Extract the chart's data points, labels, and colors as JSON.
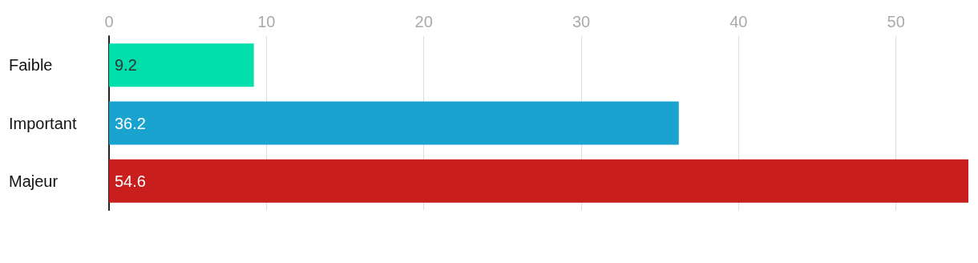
{
  "chart_data": {
    "type": "bar",
    "orientation": "horizontal",
    "categories": [
      "Faible",
      "Important",
      "Majeur"
    ],
    "values": [
      9.2,
      36.2,
      54.6
    ],
    "colors": [
      "#00dfab",
      "#1aa3cf",
      "#c81e1e"
    ],
    "xlim": [
      0,
      54.6
    ],
    "xticks": [
      0,
      10,
      20,
      30,
      40,
      50
    ],
    "grid": "x",
    "data_labels": true
  }
}
